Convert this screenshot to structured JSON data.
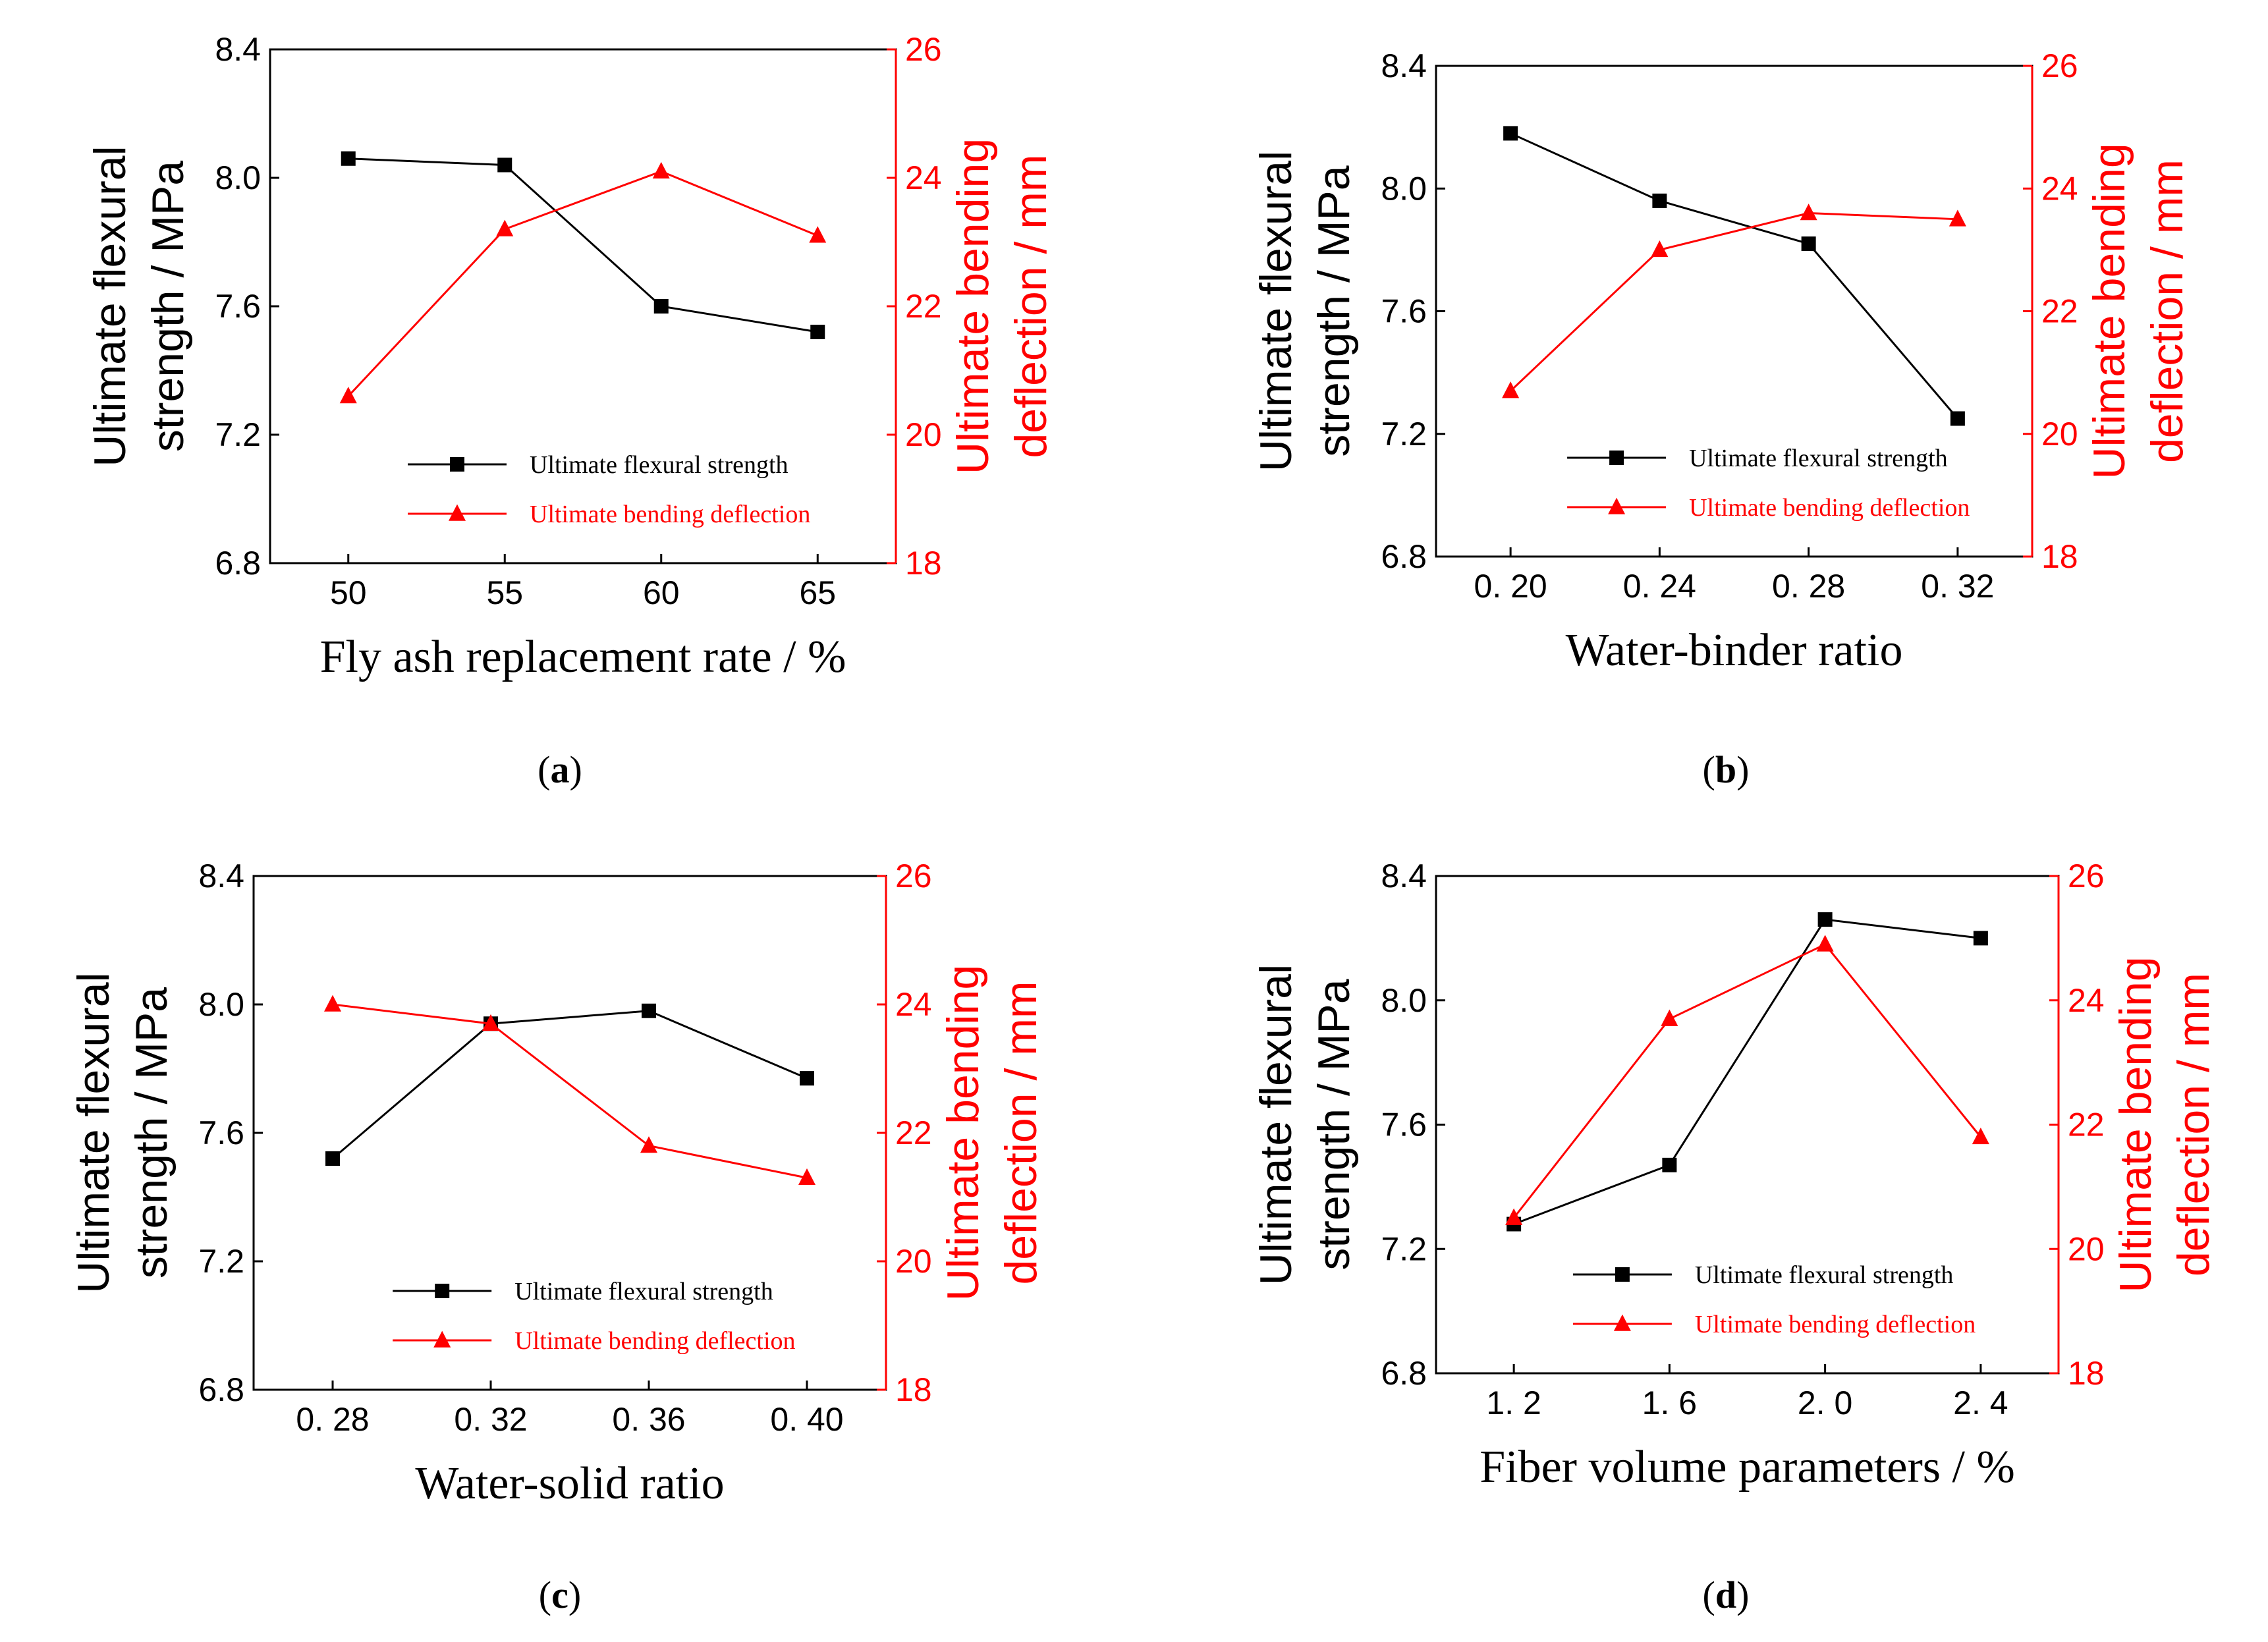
{
  "colors": {
    "strength": "#000000",
    "deflection": "#ff0000",
    "axis": "#000000",
    "right_axis": "#ff0000"
  },
  "captions": [
    {
      "open": "(",
      "letter": "a",
      "close": ")"
    },
    {
      "open": "(",
      "letter": "b",
      "close": ")"
    },
    {
      "open": "(",
      "letter": "c",
      "close": ")"
    },
    {
      "open": "(",
      "letter": "d",
      "close": ")"
    }
  ],
  "chart_data": [
    {
      "type": "line",
      "panel": "a",
      "xlabel": "Fly ash replacement rate / %",
      "ylabel_left": [
        "Ultimate flexural",
        "strength / MPa"
      ],
      "ylabel_right": [
        "Ultimate bending",
        "deflection / mm"
      ],
      "categories": [
        "50",
        "55",
        "60",
        "65"
      ],
      "ylim_left": [
        6.8,
        8.4
      ],
      "yticks_left": [
        "6.8",
        "7.2",
        "7.6",
        "8.0",
        "8.4"
      ],
      "ylim_right": [
        18,
        26
      ],
      "yticks_right": [
        "18",
        "20",
        "22",
        "24",
        "26"
      ],
      "legend_position": "lower-right",
      "series": [
        {
          "name": "Ultimate flexural strength",
          "axis": "left",
          "marker": "square",
          "values": [
            8.06,
            8.04,
            7.6,
            7.52
          ]
        },
        {
          "name": "Ultimate bending deflection",
          "axis": "right",
          "marker": "triangle",
          "values": [
            20.6,
            23.2,
            24.1,
            23.1
          ]
        }
      ]
    },
    {
      "type": "line",
      "panel": "b",
      "xlabel": "Water-binder ratio",
      "ylabel_left": [
        "Ultimate flexural",
        "strength / MPa"
      ],
      "ylabel_right": [
        "Ultimate bending",
        "deflection / mm"
      ],
      "categories": [
        "0. 20",
        "0. 24",
        "0. 28",
        "0. 32"
      ],
      "ylim_left": [
        6.8,
        8.4
      ],
      "yticks_left": [
        "6.8",
        "7.2",
        "7.6",
        "8.0",
        "8.4"
      ],
      "ylim_right": [
        18,
        26
      ],
      "yticks_right": [
        "18",
        "20",
        "22",
        "24",
        "26"
      ],
      "legend_position": "lower-right",
      "series": [
        {
          "name": "Ultimate flexural strength",
          "axis": "left",
          "marker": "square",
          "values": [
            8.18,
            7.96,
            7.82,
            7.25
          ]
        },
        {
          "name": "Ultimate bending deflection",
          "axis": "right",
          "marker": "triangle",
          "values": [
            20.7,
            23.0,
            23.6,
            23.5
          ]
        }
      ]
    },
    {
      "type": "line",
      "panel": "c",
      "xlabel": "Water-solid ratio",
      "ylabel_left": [
        "Ultimate flexural",
        "strength / MPa"
      ],
      "ylabel_right": [
        "Ultimate bending",
        "deflection / mm"
      ],
      "categories": [
        "0. 28",
        "0. 32",
        "0. 36",
        "0. 40"
      ],
      "ylim_left": [
        6.8,
        8.4
      ],
      "yticks_left": [
        "6.8",
        "7.2",
        "7.6",
        "8.0",
        "8.4"
      ],
      "ylim_right": [
        18,
        26
      ],
      "yticks_right": [
        "18",
        "20",
        "22",
        "24",
        "26"
      ],
      "legend_position": "lower-right",
      "series": [
        {
          "name": "Ultimate flexural strength",
          "axis": "left",
          "marker": "square",
          "values": [
            7.52,
            7.94,
            7.98,
            7.77
          ]
        },
        {
          "name": "Ultimate bending deflection",
          "axis": "right",
          "marker": "triangle",
          "values": [
            24.0,
            23.7,
            21.8,
            21.3
          ]
        }
      ]
    },
    {
      "type": "line",
      "panel": "d",
      "xlabel": "Fiber volume parameters / %",
      "ylabel_left": [
        "Ultimate flexural",
        "strength / MPa"
      ],
      "ylabel_right": [
        "Ultimate bending",
        "deflection / mm"
      ],
      "categories": [
        "1. 2",
        "1. 6",
        "2. 0",
        "2. 4"
      ],
      "ylim_left": [
        6.8,
        8.4
      ],
      "yticks_left": [
        "6.8",
        "7.2",
        "7.6",
        "8.0",
        "8.4"
      ],
      "ylim_right": [
        18,
        26
      ],
      "yticks_right": [
        "18",
        "20",
        "22",
        "24",
        "26"
      ],
      "legend_position": "lower-right",
      "series": [
        {
          "name": "Ultimate flexural strength",
          "axis": "left",
          "marker": "square",
          "values": [
            7.28,
            7.47,
            8.26,
            8.2
          ]
        },
        {
          "name": "Ultimate bending deflection",
          "axis": "right",
          "marker": "triangle",
          "values": [
            20.5,
            23.7,
            24.9,
            21.8
          ]
        }
      ]
    }
  ]
}
